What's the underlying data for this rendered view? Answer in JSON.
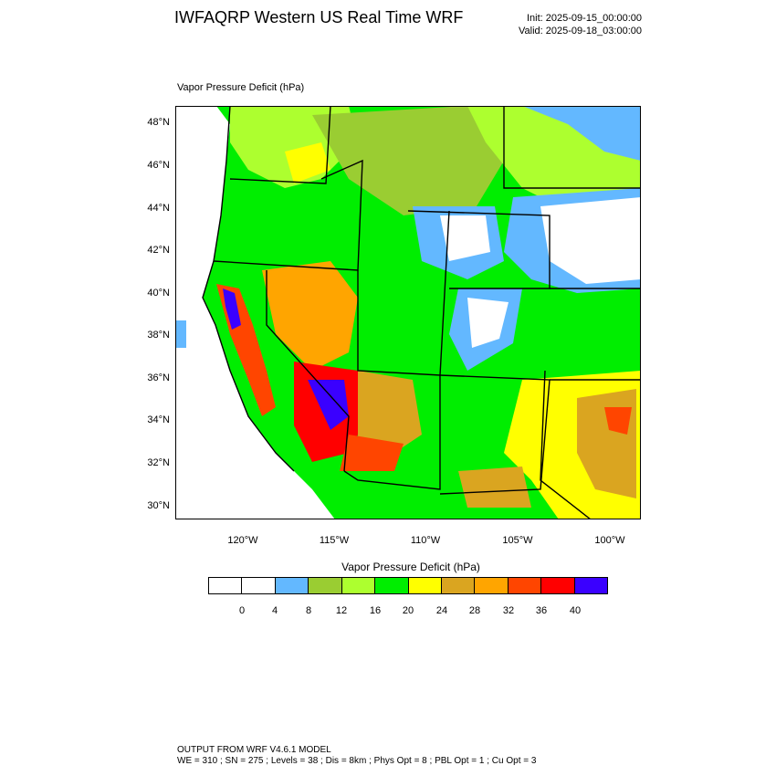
{
  "header": {
    "title": "IWFAQRP Western US Real Time WRF",
    "init": "Init: 2025-09-15_00:00:00",
    "valid": "Valid: 2025-09-18_03:00:00"
  },
  "field_label": "Vapor Pressure Deficit   (hPa)",
  "map": {
    "lat_labels": [
      "48°N",
      "46°N",
      "44°N",
      "42°N",
      "40°N",
      "38°N",
      "36°N",
      "34°N",
      "32°N",
      "30°N"
    ],
    "lon_labels": [
      "120°W",
      "115°W",
      "110°W",
      "105°W",
      "100°W"
    ],
    "colors": {
      "ocean": "#ffffff",
      "border": "#000000"
    }
  },
  "colorbar": {
    "title": "Vapor Pressure Deficit  (hPa)",
    "ticks": [
      "0",
      "4",
      "8",
      "12",
      "16",
      "20",
      "24",
      "28",
      "32",
      "36",
      "40"
    ],
    "colors": [
      "#ffffff",
      "#ffffff",
      "#63b8ff",
      "#9acd32",
      "#adff2f",
      "#00ee00",
      "#ffff00",
      "#daa520",
      "#ffa500",
      "#ff4500",
      "#ff0000",
      "#3a00ff"
    ]
  },
  "footer": {
    "line1": "OUTPUT FROM WRF V4.6.1 MODEL",
    "line2": "WE = 310 ; SN = 275 ; Levels = 38 ; Dis = 8km ; Phys Opt = 8 ; PBL Opt = 1 ; Cu Opt = 3"
  }
}
